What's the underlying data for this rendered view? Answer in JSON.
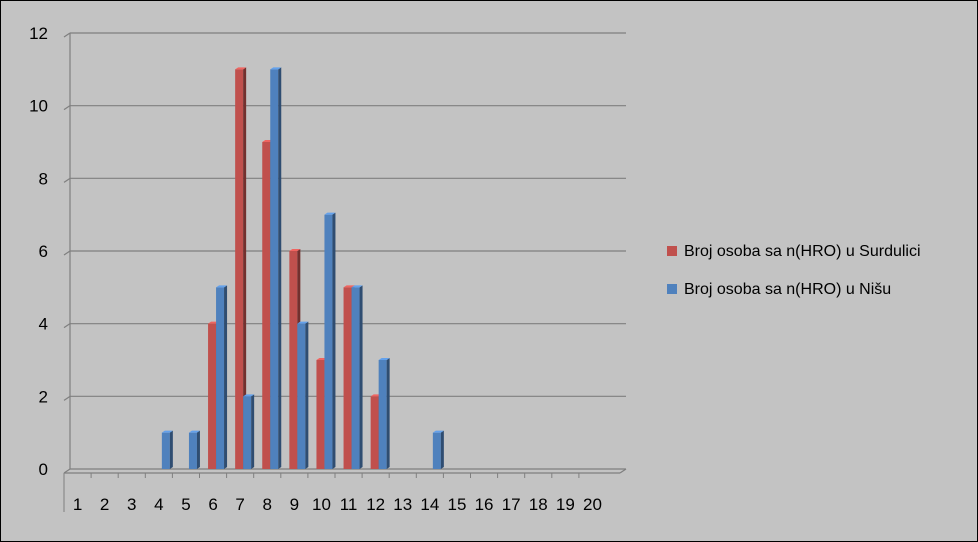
{
  "chart_data": {
    "type": "bar",
    "categories": [
      "1",
      "2",
      "3",
      "4",
      "5",
      "6",
      "7",
      "8",
      "9",
      "10",
      "11",
      "12",
      "13",
      "14",
      "15",
      "16",
      "17",
      "18",
      "19",
      "20"
    ],
    "series": [
      {
        "name": "Broj osoba sa n(HRO) u Surdulici",
        "color": "#c0504d",
        "values": [
          0,
          0,
          0,
          0,
          0,
          4,
          11,
          9,
          6,
          3,
          5,
          2,
          0,
          0,
          0,
          0,
          0,
          0,
          0,
          0
        ]
      },
      {
        "name": "Broj osoba sa n(HRO) u Nišu",
        "color": "#4f81bd",
        "values": [
          0,
          0,
          0,
          1,
          1,
          5,
          2,
          11,
          4,
          7,
          5,
          3,
          0,
          1,
          0,
          0,
          0,
          0,
          0,
          0
        ]
      }
    ],
    "ylim": [
      0,
      12
    ],
    "yticks": [
      "0",
      "2",
      "4",
      "6",
      "8",
      "10",
      "12"
    ],
    "grid": true,
    "legend": "right"
  }
}
